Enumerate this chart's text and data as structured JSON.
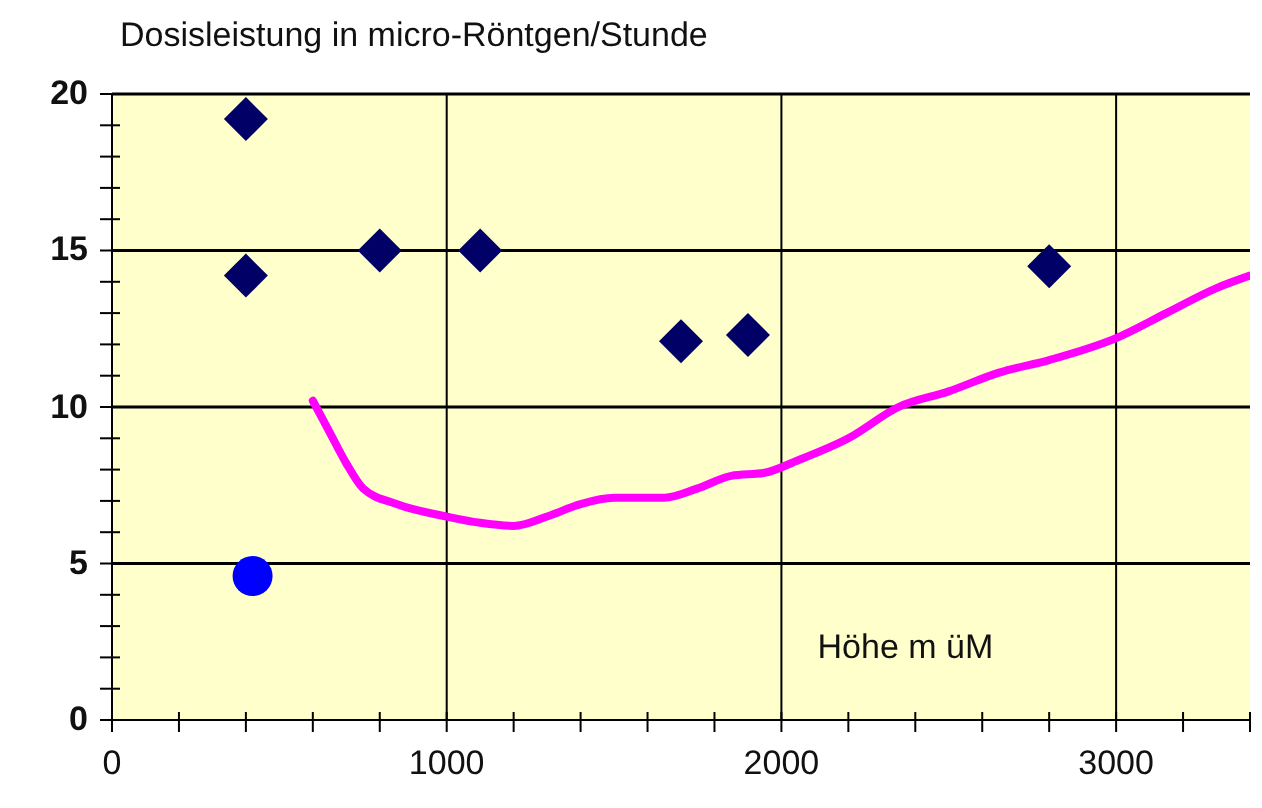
{
  "chart_data": {
    "type": "scatter",
    "ylabel": "Dosisleistung in micro-Röntgen/Stunde",
    "xlabel": "Höhe m üM",
    "xlim": [
      0,
      3400
    ],
    "ylim": [
      0,
      20
    ],
    "xticks": [
      0,
      {
        "value": 200,
        "label": null
      },
      {
        "value": 400,
        "label": null
      },
      {
        "value": 600,
        "label": null
      },
      {
        "value": 800,
        "label": null
      },
      1000,
      {
        "value": 1200,
        "label": null
      },
      {
        "value": 1400,
        "label": null
      },
      {
        "value": 1600,
        "label": null
      },
      {
        "value": 1800,
        "label": null
      },
      2000,
      {
        "value": 2200,
        "label": null
      },
      {
        "value": 2400,
        "label": null
      },
      {
        "value": 2600,
        "label": null
      },
      {
        "value": 2800,
        "label": null
      },
      3000,
      {
        "value": 3200,
        "label": null
      },
      {
        "value": 3400,
        "label": null
      }
    ],
    "yticks": [
      0,
      {
        "value": 1,
        "label": null
      },
      {
        "value": 2,
        "label": null
      },
      {
        "value": 3,
        "label": null
      },
      {
        "value": 4,
        "label": null
      },
      5,
      {
        "value": 6,
        "label": null
      },
      {
        "value": 7,
        "label": null
      },
      {
        "value": 8,
        "label": null
      },
      {
        "value": 9,
        "label": null
      },
      10,
      {
        "value": 11,
        "label": null
      },
      {
        "value": 12,
        "label": null
      },
      {
        "value": 13,
        "label": null
      },
      {
        "value": 14,
        "label": null
      },
      15,
      {
        "value": 16,
        "label": null
      },
      {
        "value": 17,
        "label": null
      },
      {
        "value": 18,
        "label": null
      },
      {
        "value": 19,
        "label": null
      },
      20
    ],
    "grid": true,
    "legend": false,
    "series": [
      {
        "marker": "diamond",
        "color": "#000066",
        "x": [
          400,
          400,
          800,
          1100,
          1700,
          1900,
          2800
        ],
        "values": [
          19.2,
          14.2,
          15,
          15,
          12.1,
          12.3,
          14.5
        ]
      },
      {
        "marker": "circle",
        "color": "#0000ff",
        "x": [
          420
        ],
        "values": [
          4.6
        ]
      },
      {
        "type": "line",
        "marker": "none",
        "color": "#ff00ff",
        "x": [
          600,
          650,
          700,
          750,
          850,
          1000,
          1100,
          1200,
          1300,
          1400,
          1500,
          1650,
          1750,
          1850,
          1950,
          2050,
          2200,
          2350,
          2500,
          2650,
          2800,
          3000,
          3150,
          3300,
          3400
        ],
        "values": [
          10.2,
          9.2,
          8.2,
          7.4,
          6.9,
          6.5,
          6.3,
          6.2,
          6.5,
          6.9,
          7.1,
          7.1,
          7.4,
          7.8,
          7.9,
          8.3,
          9.0,
          10.0,
          10.5,
          11.1,
          11.5,
          12.2,
          13.0,
          13.8,
          14.2
        ]
      }
    ]
  }
}
